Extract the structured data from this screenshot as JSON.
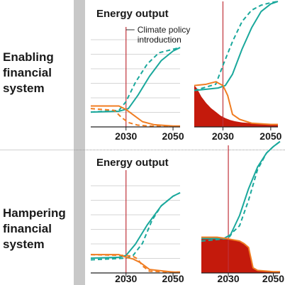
{
  "rows": [
    {
      "label_lines": [
        "Enabling",
        "financial",
        "system"
      ]
    },
    {
      "label_lines": [
        "Hampering",
        "financial",
        "system"
      ]
    }
  ],
  "annotation": {
    "line1": "Climate policy",
    "line2": "introduction"
  },
  "colors": {
    "teal": "#1aa89c",
    "orange": "#f07d22",
    "red": "#c41a0c",
    "policy_line": "#c0323a",
    "grid": "#d6d6d6",
    "axis": "#222222"
  },
  "chart_data": [
    {
      "type": "line",
      "title": "Energy output",
      "x_ticks": [
        2030,
        2050
      ],
      "xlim": [
        2015,
        2053
      ],
      "ylim": [
        0,
        1
      ],
      "policy_year": 2030,
      "series": [
        {
          "style": "teal-solid",
          "x": [
            2015,
            2027,
            2031,
            2035,
            2040,
            2045,
            2050,
            2053
          ],
          "values": [
            0.17,
            0.18,
            0.21,
            0.36,
            0.58,
            0.76,
            0.87,
            0.91
          ]
        },
        {
          "style": "teal-dashed",
          "x": [
            2015,
            2027,
            2030,
            2034,
            2039,
            2044,
            2050,
            2053
          ],
          "values": [
            0.17,
            0.19,
            0.29,
            0.51,
            0.72,
            0.85,
            0.89,
            0.91
          ]
        },
        {
          "style": "orange-solid",
          "x": [
            2015,
            2027,
            2030,
            2033,
            2037,
            2042,
            2050,
            2053
          ],
          "values": [
            0.24,
            0.24,
            0.2,
            0.14,
            0.06,
            0.025,
            0.01,
            0.01
          ]
        },
        {
          "style": "orange-dashed",
          "x": [
            2015,
            2025,
            2028,
            2031,
            2035,
            2040,
            2050,
            2053
          ],
          "values": [
            0.21,
            0.19,
            0.11,
            0.05,
            0.02,
            0.01,
            0.005,
            0.005
          ]
        }
      ]
    },
    {
      "type": "area",
      "title": "",
      "x_ticks": [
        2030,
        2050
      ],
      "xlim": [
        2018,
        2053
      ],
      "ylim": [
        0,
        1
      ],
      "policy_year": 2030,
      "series": [
        {
          "style": "teal-solid",
          "x": [
            2018,
            2028,
            2031,
            2034,
            2038,
            2042,
            2046,
            2050,
            2053
          ],
          "values": [
            0.29,
            0.31,
            0.33,
            0.42,
            0.62,
            0.79,
            0.92,
            0.98,
            1.0
          ]
        },
        {
          "style": "teal-dashed",
          "x": [
            2018,
            2027,
            2030,
            2034,
            2038,
            2042,
            2046,
            2050,
            2053
          ],
          "values": [
            0.29,
            0.34,
            0.49,
            0.68,
            0.84,
            0.93,
            0.97,
            0.99,
            1.0
          ]
        },
        {
          "style": "orange-solid",
          "x": [
            2018,
            2023,
            2027,
            2030,
            2032,
            2034,
            2037,
            2042,
            2050,
            2053
          ],
          "values": [
            0.33,
            0.34,
            0.36,
            0.33,
            0.25,
            0.1,
            0.06,
            0.03,
            0.02,
            0.02
          ]
        },
        {
          "style": "red-area",
          "x": [
            2018,
            2019,
            2021,
            2023,
            2025,
            2027,
            2029,
            2031,
            2033,
            2035,
            2038,
            2042,
            2046,
            2050,
            2053
          ],
          "values": [
            0.33,
            0.31,
            0.24,
            0.19,
            0.15,
            0.12,
            0.09,
            0.07,
            0.055,
            0.045,
            0.035,
            0.03,
            0.025,
            0.02,
            0.02
          ]
        }
      ]
    },
    {
      "type": "line",
      "title": "Energy output",
      "x_ticks": [
        2030,
        2050
      ],
      "xlim": [
        2015,
        2053
      ],
      "ylim": [
        0,
        1
      ],
      "policy_year": 2030,
      "series": [
        {
          "style": "teal-solid",
          "x": [
            2015,
            2027,
            2030,
            2034,
            2039,
            2045,
            2050,
            2053
          ],
          "values": [
            0.17,
            0.18,
            0.2,
            0.33,
            0.55,
            0.77,
            0.88,
            0.92
          ]
        },
        {
          "style": "teal-dashed",
          "x": [
            2015,
            2030,
            2033,
            2037,
            2041,
            2045,
            2050,
            2053
          ],
          "values": [
            0.15,
            0.17,
            0.2,
            0.34,
            0.6,
            0.77,
            0.88,
            0.92
          ]
        },
        {
          "style": "orange-solid",
          "x": [
            2015,
            2027,
            2030,
            2033,
            2036,
            2040,
            2050,
            2053
          ],
          "values": [
            0.21,
            0.21,
            0.18,
            0.16,
            0.12,
            0.04,
            0.01,
            0.01
          ]
        },
        {
          "style": "orange-dashed",
          "x": [
            2015,
            2030,
            2033,
            2035,
            2037,
            2040,
            2050,
            2053
          ],
          "values": [
            0.21,
            0.2,
            0.19,
            0.16,
            0.08,
            0.02,
            0.01,
            0.01
          ]
        }
      ]
    },
    {
      "type": "area",
      "title": "",
      "x_ticks": [
        2030,
        2050
      ],
      "xlim": [
        2018,
        2053
      ],
      "ylim": [
        0,
        1
      ],
      "policy_year": 2030,
      "series": [
        {
          "style": "teal-solid",
          "x": [
            2018,
            2028,
            2031,
            2035,
            2039,
            2043,
            2047,
            2050,
            2053
          ],
          "values": [
            0.27,
            0.27,
            0.3,
            0.45,
            0.66,
            0.83,
            0.94,
            0.99,
            1.03
          ]
        },
        {
          "style": "teal-dashed",
          "x": [
            2018,
            2030,
            2032,
            2035,
            2039,
            2043,
            2047,
            2050,
            2053
          ],
          "values": [
            0.25,
            0.27,
            0.32,
            0.37,
            0.57,
            0.81,
            0.94,
            0.99,
            1.03
          ]
        },
        {
          "style": "orange-solid",
          "x": [
            2018,
            2025,
            2029,
            2032,
            2035,
            2037,
            2039,
            2040,
            2041,
            2043,
            2050,
            2053
          ],
          "values": [
            0.28,
            0.28,
            0.27,
            0.26,
            0.25,
            0.23,
            0.2,
            0.12,
            0.04,
            0.02,
            0.01,
            0.01
          ]
        },
        {
          "style": "red-area",
          "x": [
            2018,
            2025,
            2029,
            2032,
            2035,
            2037,
            2039,
            2040,
            2041,
            2043,
            2050,
            2053
          ],
          "values": [
            0.28,
            0.28,
            0.27,
            0.26,
            0.25,
            0.23,
            0.2,
            0.12,
            0.04,
            0.02,
            0.01,
            0.01
          ]
        }
      ]
    }
  ]
}
